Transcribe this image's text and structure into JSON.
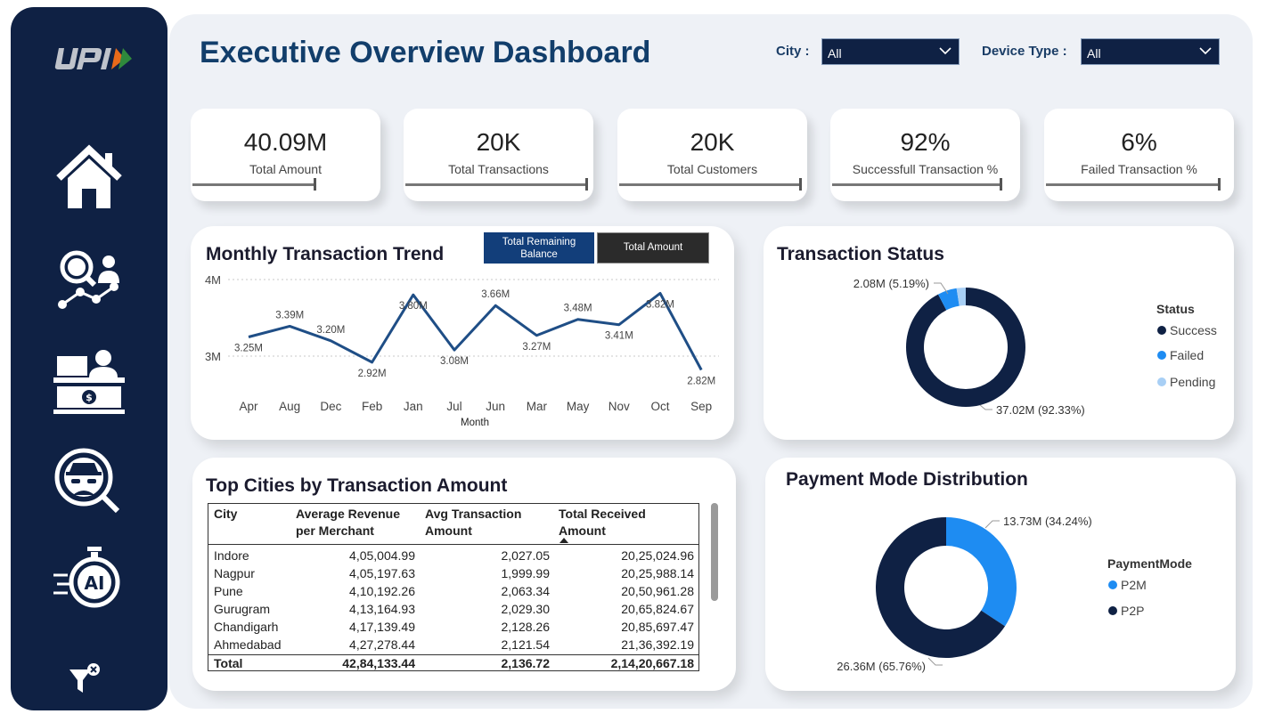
{
  "title": "Executive Overview Dashboard",
  "filters": {
    "city_label": "City :",
    "city_value": "All",
    "device_label": "Device Type :",
    "device_value": "All"
  },
  "kpis": [
    {
      "value": "40.09M",
      "label": "Total Amount"
    },
    {
      "value": "20K",
      "label": "Total Transactions"
    },
    {
      "value": "20K",
      "label": "Total Customers"
    },
    {
      "value": "92%",
      "label": "Successfull Transaction %"
    },
    {
      "value": "6%",
      "label": "Failed Transaction %"
    }
  ],
  "nav": [
    "home-icon",
    "analytics-icon",
    "merchant-icon",
    "fraud-detection-icon",
    "ai-icon",
    "filter-clear-icon"
  ],
  "colors": {
    "navy": "#0f2144",
    "title_blue": "#123e6b",
    "line": "#1f4e86",
    "success": "#0f2144",
    "failed": "#1e8cf2",
    "pending": "#a8cff5",
    "p2m": "#1e8cf2",
    "p2p": "#0f2144"
  },
  "trend": {
    "title": "Monthly Transaction Trend",
    "toggle_active": "Total Remaining Balance",
    "toggle_inactive": "Total Amount",
    "xlabel": "Month",
    "y_ticks": [
      "4M",
      "3M"
    ]
  },
  "status": {
    "title": "Transaction Status",
    "legend_title": "Status",
    "label_failed": "2.08M (5.19%)",
    "label_success": "37.02M (92.33%)"
  },
  "payment": {
    "title": "Payment Mode Distribution",
    "legend_title": "PaymentMode",
    "label_p2m": "13.73M (34.24%)",
    "label_p2p": "26.36M (65.76%)"
  },
  "table": {
    "title": "Top Cities by Transaction Amount",
    "headers": [
      "City",
      "Average Revenue per Merchant",
      "Avg Transaction Amount",
      "Total Received Amount"
    ],
    "rows": [
      [
        "Indore",
        "4,05,004.99",
        "2,027.05",
        "20,25,024.96"
      ],
      [
        "Nagpur",
        "4,05,197.63",
        "1,999.99",
        "20,25,988.14"
      ],
      [
        "Pune",
        "4,10,192.26",
        "2,063.34",
        "20,50,961.28"
      ],
      [
        "Gurugram",
        "4,13,164.93",
        "2,029.30",
        "20,65,824.67"
      ],
      [
        "Chandigarh",
        "4,17,139.49",
        "2,128.26",
        "20,85,697.47"
      ],
      [
        "Ahmedabad",
        "4,27,278.44",
        "2,121.54",
        "21,36,392.19"
      ]
    ],
    "total": [
      "Total",
      "42,84,133.44",
      "2,136.72",
      "2,14,20,667.18"
    ]
  },
  "chart_data": [
    {
      "type": "line",
      "title": "Monthly Transaction Trend",
      "xlabel": "Month",
      "ylabel": "",
      "categories": [
        "Apr",
        "Aug",
        "Dec",
        "Feb",
        "Jan",
        "Jul",
        "Jun",
        "Mar",
        "May",
        "Nov",
        "Oct",
        "Sep"
      ],
      "values": [
        3.25,
        3.39,
        3.2,
        2.92,
        3.8,
        3.08,
        3.66,
        3.27,
        3.48,
        3.41,
        3.82,
        2.82
      ],
      "data_labels": [
        "3.25M",
        "3.39M",
        "3.20M",
        "2.92M",
        "3.80M",
        "3.08M",
        "3.66M",
        "3.27M",
        "3.48M",
        "3.41M",
        "3.82M",
        "2.82M"
      ],
      "y_tick_values": [
        4,
        3
      ],
      "ylim": [
        2.7,
        4.05
      ]
    },
    {
      "type": "pie",
      "title": "Transaction Status",
      "categories": [
        "Success",
        "Failed",
        "Pending"
      ],
      "values": [
        37.02,
        2.08,
        0.99
      ],
      "percent": [
        92.33,
        5.19,
        2.48
      ]
    },
    {
      "type": "pie",
      "title": "Payment Mode Distribution",
      "categories": [
        "P2M",
        "P2P"
      ],
      "values": [
        13.73,
        26.36
      ],
      "percent": [
        34.24,
        65.76
      ]
    }
  ]
}
